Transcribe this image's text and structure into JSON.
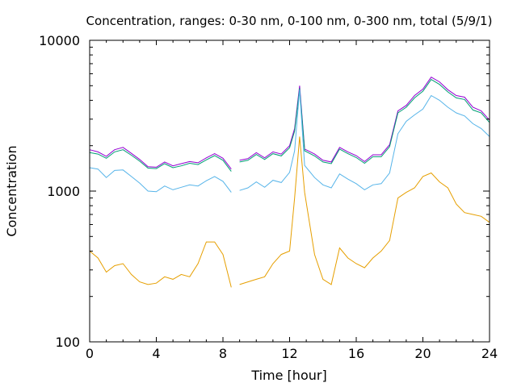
{
  "chart_data": {
    "type": "line",
    "title": "Concentration, ranges: 0-30 nm, 0-100 nm, 0-300 nm, total (5/9/1)",
    "xlabel": "Time [hour]",
    "ylabel": "Concentration",
    "xlim": [
      0,
      24
    ],
    "ylim": [
      100,
      10000
    ],
    "yscale": "log",
    "grid": false,
    "x_ticks": [
      0,
      4,
      8,
      12,
      16,
      20,
      24
    ],
    "x_tick_labels": [
      "0",
      "4",
      "8",
      "12",
      "16",
      "20",
      "24"
    ],
    "y_ticks": [
      100,
      1000,
      10000
    ],
    "y_tick_labels": [
      "100",
      "1000",
      "10000"
    ],
    "x": [
      0,
      0.5,
      1,
      1.5,
      2,
      2.5,
      3,
      3.5,
      4,
      4.5,
      5,
      5.5,
      6,
      6.5,
      7,
      7.5,
      8,
      8.5,
      9,
      9.5,
      10,
      10.5,
      11,
      11.5,
      12,
      12.3,
      12.6,
      12.9,
      13.5,
      14,
      14.5,
      15,
      15.5,
      16,
      16.5,
      17,
      17.5,
      18,
      18.5,
      19,
      19.5,
      20,
      20.5,
      21,
      21.5,
      22,
      22.5,
      23,
      23.5,
      24
    ],
    "gaps_after": [
      8.5
    ],
    "series": [
      {
        "color": "#9400d3",
        "values": [
          1880,
          1820,
          1700,
          1880,
          1950,
          1780,
          1620,
          1450,
          1440,
          1560,
          1470,
          1520,
          1570,
          1540,
          1660,
          1770,
          1650,
          1400,
          1600,
          1640,
          1800,
          1660,
          1820,
          1760,
          2000,
          2600,
          5000,
          1900,
          1760,
          1600,
          1560,
          1950,
          1820,
          1720,
          1570,
          1740,
          1740,
          2030,
          3400,
          3700,
          4300,
          4750,
          5700,
          5300,
          4700,
          4300,
          4200,
          3600,
          3400,
          2950
        ]
      },
      {
        "color": "#009e73",
        "values": [
          1800,
          1760,
          1650,
          1820,
          1880,
          1730,
          1580,
          1420,
          1410,
          1520,
          1430,
          1470,
          1530,
          1500,
          1610,
          1720,
          1600,
          1350,
          1560,
          1600,
          1750,
          1620,
          1770,
          1710,
          1940,
          2500,
          4800,
          1850,
          1710,
          1560,
          1520,
          1900,
          1770,
          1670,
          1530,
          1690,
          1690,
          1970,
          3300,
          3600,
          4150,
          4600,
          5500,
          5100,
          4550,
          4150,
          4050,
          3450,
          3300,
          2850
        ]
      },
      {
        "color": "#56b4e9",
        "values": [
          1430,
          1400,
          1230,
          1370,
          1380,
          1250,
          1130,
          1000,
          990,
          1080,
          1020,
          1060,
          1100,
          1080,
          1170,
          1250,
          1160,
          980,
          1010,
          1050,
          1150,
          1060,
          1180,
          1140,
          1330,
          1850,
          4700,
          1480,
          1230,
          1100,
          1050,
          1300,
          1200,
          1120,
          1020,
          1100,
          1120,
          1320,
          2400,
          2900,
          3200,
          3500,
          4300,
          4000,
          3600,
          3300,
          3150,
          2800,
          2600,
          2300
        ]
      },
      {
        "color": "#e69f00",
        "values": [
          400,
          360,
          290,
          320,
          330,
          280,
          250,
          240,
          245,
          270,
          260,
          280,
          270,
          330,
          460,
          460,
          380,
          230,
          240,
          250,
          260,
          270,
          330,
          380,
          400,
          900,
          2300,
          980,
          380,
          260,
          240,
          420,
          360,
          330,
          310,
          360,
          400,
          470,
          900,
          980,
          1050,
          1250,
          1320,
          1150,
          1050,
          820,
          720,
          700,
          680,
          620
        ]
      }
    ]
  }
}
